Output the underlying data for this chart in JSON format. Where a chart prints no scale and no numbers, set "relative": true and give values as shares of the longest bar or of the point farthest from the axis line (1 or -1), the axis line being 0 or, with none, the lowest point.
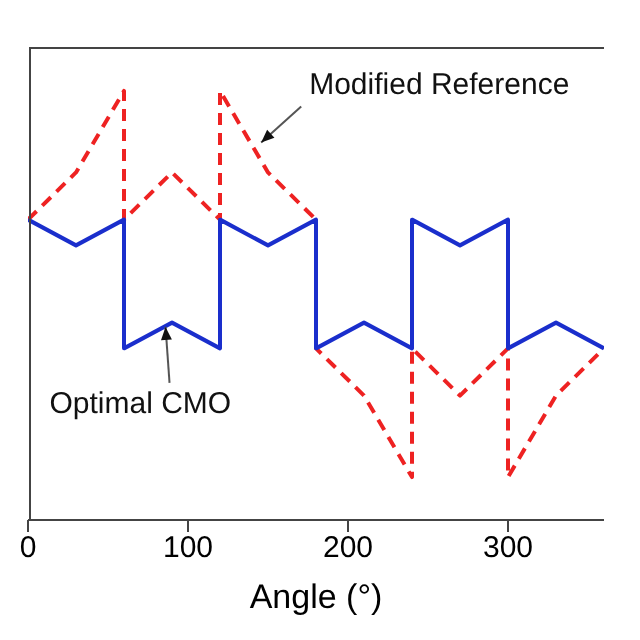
{
  "chart_data": {
    "type": "line",
    "xlabel": "Angle (°)",
    "relative": true,
    "xlim": [
      0,
      360
    ],
    "xticks": [
      0,
      100,
      200,
      300
    ],
    "series": [
      {
        "color": "#ee2222",
        "line_style": "dashed",
        "x": [
          0,
          30,
          60,
          60,
          90,
          120,
          120,
          150,
          180,
          180,
          210,
          240,
          240,
          270,
          300,
          300,
          330,
          360
        ],
        "values": [
          0.7,
          0.81,
          1,
          0.7,
          0.81,
          0.7,
          1,
          0.81,
          0.7,
          0.4,
          0.29,
          0.1,
          0.4,
          0.29,
          0.4,
          0.1,
          0.29,
          0.4
        ]
      },
      {
        "color": "#1a2ecc",
        "line_style": "solid",
        "x": [
          0,
          30,
          60,
          60,
          90,
          120,
          120,
          150,
          180,
          180,
          210,
          240,
          240,
          270,
          300,
          300,
          330,
          360
        ],
        "values": [
          0.7,
          0.64,
          0.7,
          0.4,
          0.46,
          0.4,
          0.7,
          0.64,
          0.7,
          0.4,
          0.46,
          0.4,
          0.7,
          0.64,
          0.7,
          0.4,
          0.46,
          0.4
        ]
      }
    ],
    "annotations": [
      {
        "text": "Modified Reference",
        "x": 145,
        "y": 0.88
      },
      {
        "text": "Optimal CMO",
        "x": 85,
        "y": 0.45
      }
    ]
  }
}
